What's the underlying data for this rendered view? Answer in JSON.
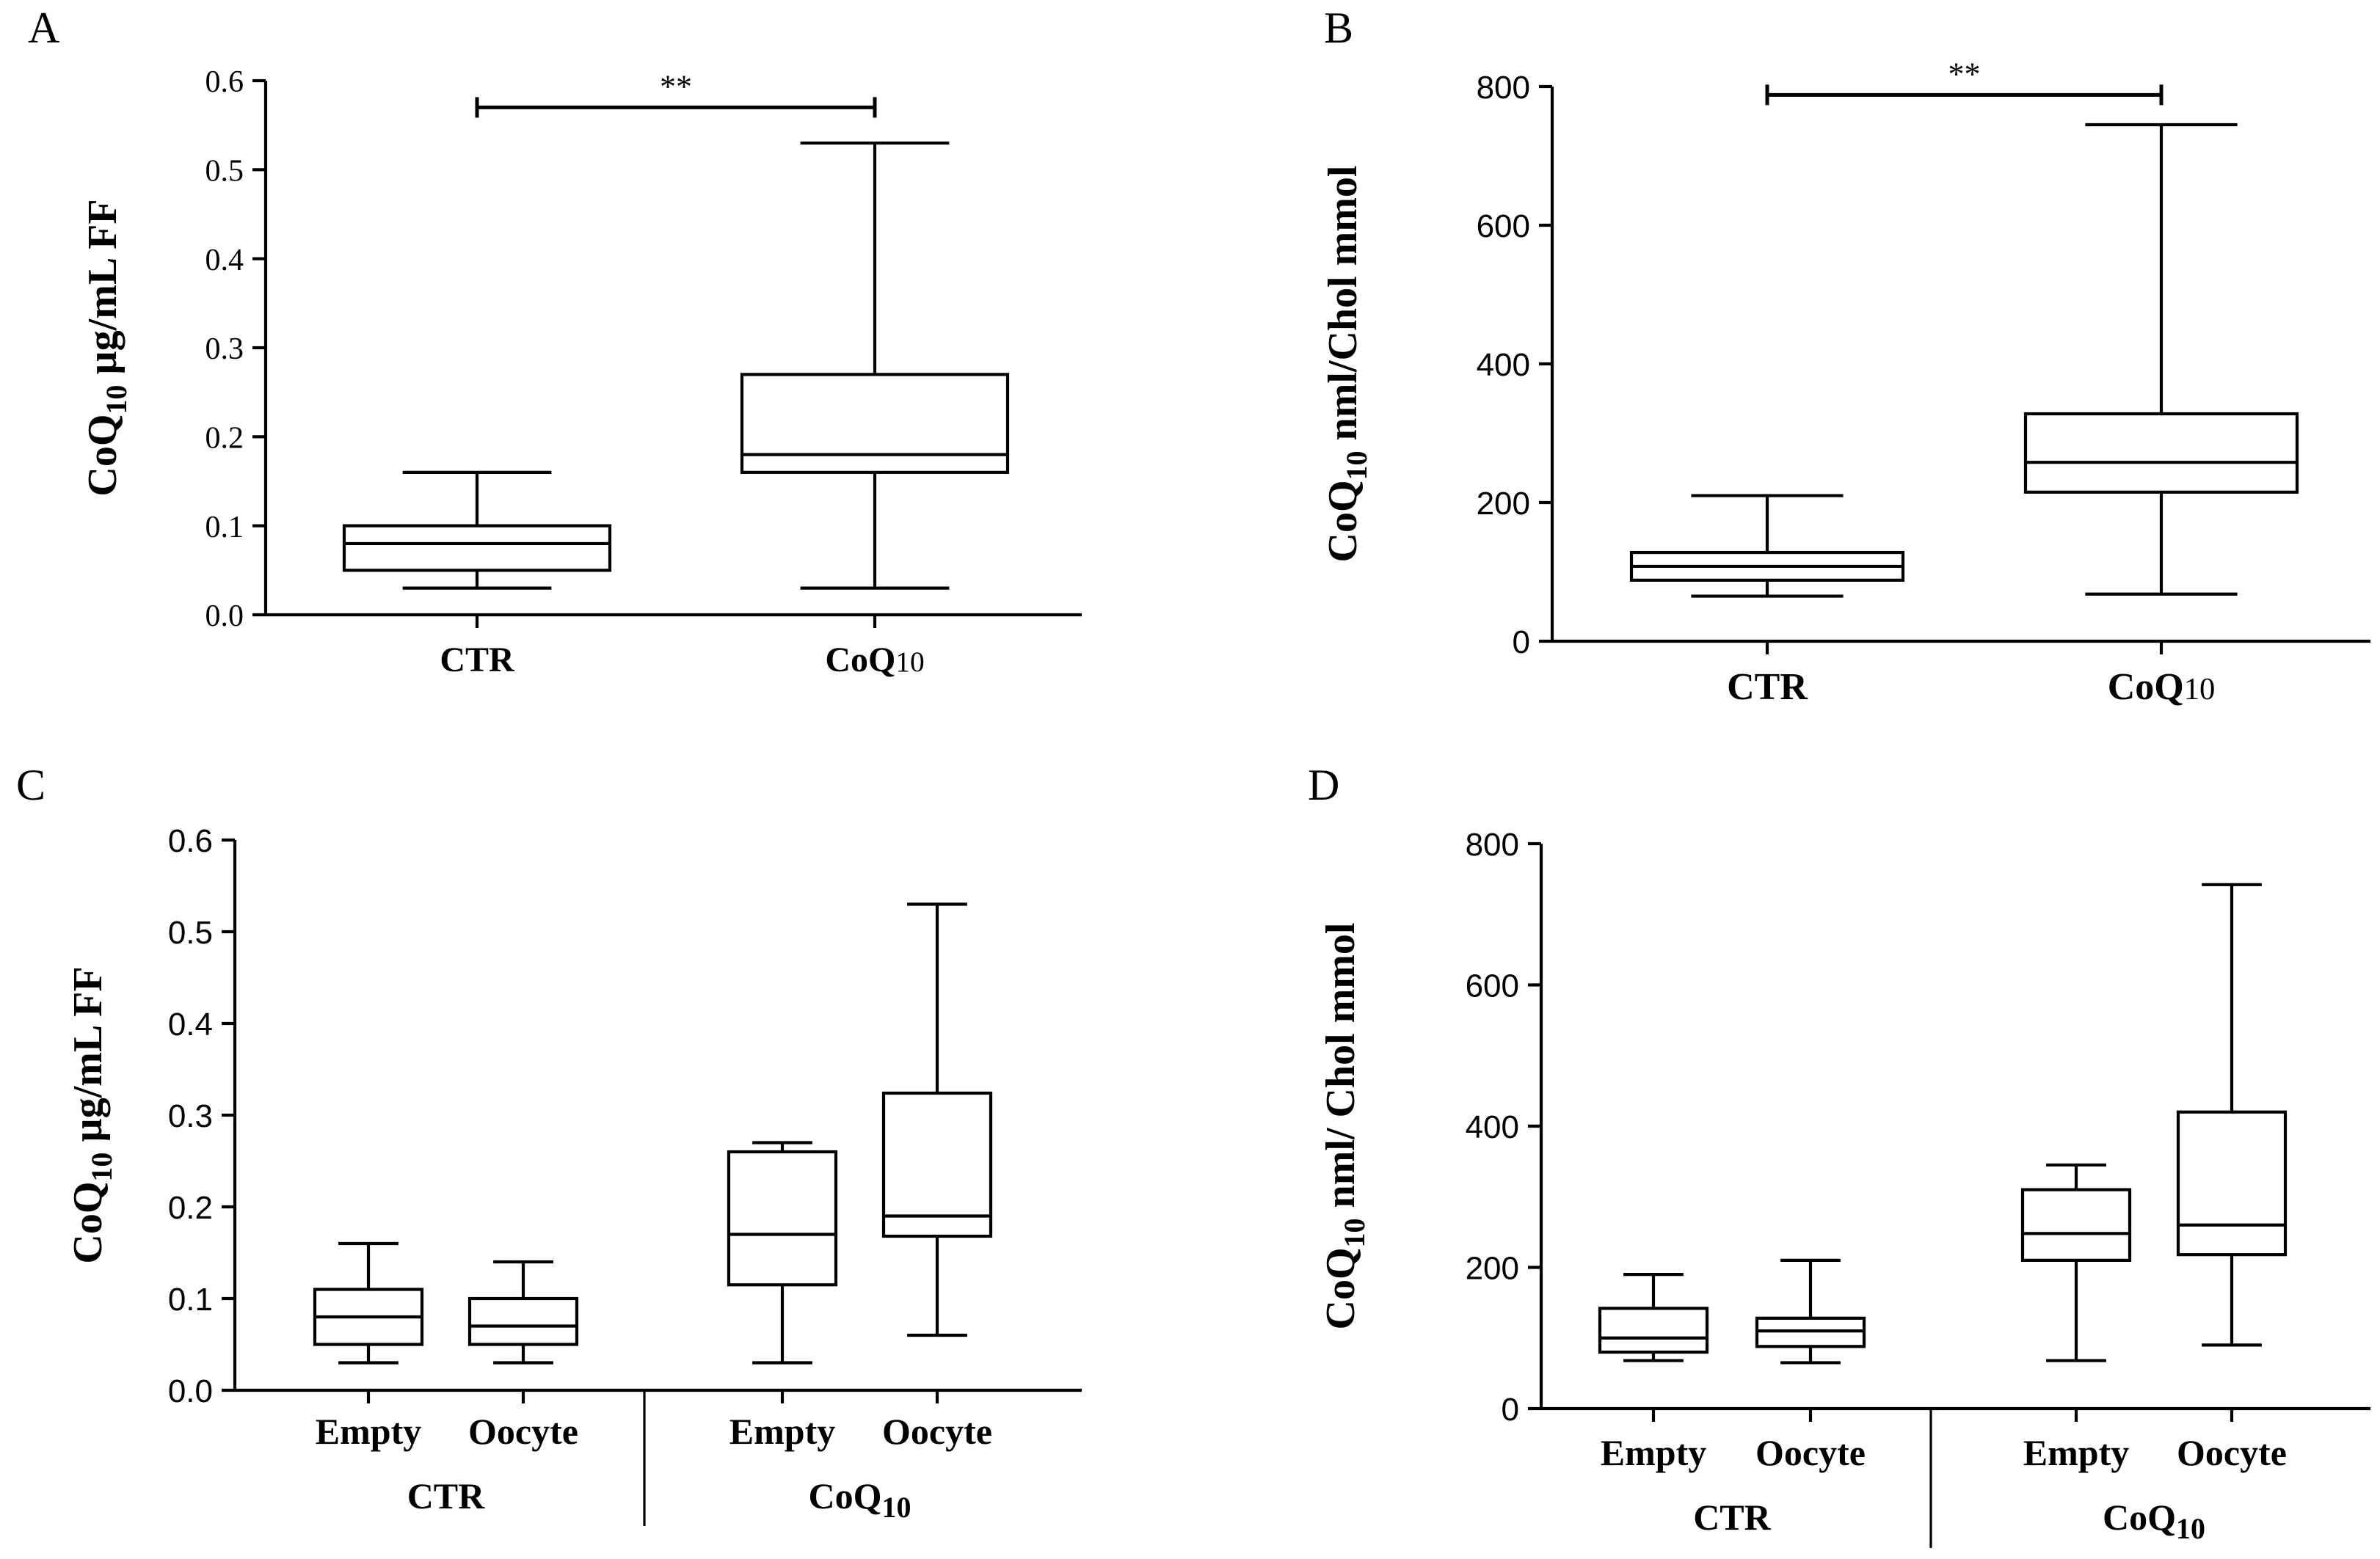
{
  "chart_data": [
    {
      "id": "A",
      "panel_label": "A",
      "type": "box",
      "ylabel": {
        "pre": "CoQ",
        "sub": "10",
        "post": " µg/mL FF"
      },
      "ylim": [
        0,
        0.6
      ],
      "yticks": [
        "0.0",
        "0.1",
        "0.2",
        "0.3",
        "0.4",
        "0.5",
        "0.6"
      ],
      "yticks_values": [
        0,
        0.1,
        0.2,
        0.3,
        0.4,
        0.5,
        0.6
      ],
      "groups": [
        {
          "label": "CTR",
          "label_sub": "",
          "boxes": [
            {
              "label": "",
              "min": 0.03,
              "q1": 0.05,
              "median": 0.08,
              "q3": 0.1,
              "max": 0.16
            }
          ]
        },
        {
          "label": "CoQ",
          "label_sub": "10",
          "boxes": [
            {
              "label": "",
              "min": 0.03,
              "q1": 0.16,
              "median": 0.18,
              "q3": 0.27,
              "max": 0.53
            }
          ]
        }
      ],
      "significance": {
        "text": "**",
        "y": 0.57
      }
    },
    {
      "id": "B",
      "panel_label": "B",
      "type": "box",
      "ylabel": {
        "pre": "CoQ",
        "sub": "10",
        "post": " nml/Chol mmol"
      },
      "ylim": [
        0,
        800
      ],
      "yticks": [
        "0",
        "200",
        "400",
        "600",
        "800"
      ],
      "yticks_values": [
        0,
        200,
        400,
        600,
        800
      ],
      "groups": [
        {
          "label": "CTR",
          "label_sub": "",
          "boxes": [
            {
              "label": "",
              "min": 65,
              "q1": 88,
              "median": 108,
              "q3": 128,
              "max": 210
            }
          ]
        },
        {
          "label": "CoQ",
          "label_sub": "10",
          "boxes": [
            {
              "label": "",
              "min": 68,
              "q1": 215,
              "median": 258,
              "q3": 328,
              "max": 745
            }
          ]
        }
      ],
      "significance": {
        "text": "**",
        "y": 788
      }
    },
    {
      "id": "C",
      "panel_label": "C",
      "type": "box",
      "ylabel": {
        "pre": "CoQ",
        "sub": "10",
        "post": " µg/mL FF"
      },
      "ylim": [
        0,
        0.6
      ],
      "yticks": [
        "0.0",
        "0.1",
        "0.2",
        "0.3",
        "0.4",
        "0.5",
        "0.6"
      ],
      "yticks_values": [
        0,
        0.1,
        0.2,
        0.3,
        0.4,
        0.5,
        0.6
      ],
      "groups": [
        {
          "label": "CTR",
          "label_sub": "",
          "boxes": [
            {
              "label": "Empty",
              "min": 0.03,
              "q1": 0.05,
              "median": 0.08,
              "q3": 0.11,
              "max": 0.16
            },
            {
              "label": "Oocyte",
              "min": 0.03,
              "q1": 0.05,
              "median": 0.07,
              "q3": 0.1,
              "max": 0.14
            }
          ]
        },
        {
          "label": "CoQ",
          "label_sub": "10",
          "boxes": [
            {
              "label": "Empty",
              "min": 0.03,
              "q1": 0.115,
              "median": 0.17,
              "q3": 0.26,
              "max": 0.27
            },
            {
              "label": "Oocyte",
              "min": 0.06,
              "q1": 0.168,
              "median": 0.19,
              "q3": 0.324,
              "max": 0.53
            }
          ]
        }
      ]
    },
    {
      "id": "D",
      "panel_label": "D",
      "type": "box",
      "ylabel": {
        "pre": "CoQ",
        "sub": "10",
        "post": " nml/ Chol mmol"
      },
      "ylim": [
        0,
        800
      ],
      "yticks": [
        "0",
        "200",
        "400",
        "600",
        "800"
      ],
      "yticks_values": [
        0,
        200,
        400,
        600,
        800
      ],
      "groups": [
        {
          "label": "CTR",
          "label_sub": "",
          "boxes": [
            {
              "label": "Empty",
              "min": 68,
              "q1": 80,
              "median": 100,
              "q3": 142,
              "max": 190
            },
            {
              "label": "Oocyte",
              "min": 65,
              "q1": 88,
              "median": 110,
              "q3": 128,
              "max": 210
            }
          ]
        },
        {
          "label": "CoQ",
          "label_sub": "10",
          "boxes": [
            {
              "label": "Empty",
              "min": 68,
              "q1": 210,
              "median": 248,
              "q3": 310,
              "max": 345
            },
            {
              "label": "Oocyte",
              "min": 90,
              "q1": 218,
              "median": 260,
              "q3": 420,
              "max": 742
            }
          ]
        }
      ]
    }
  ]
}
